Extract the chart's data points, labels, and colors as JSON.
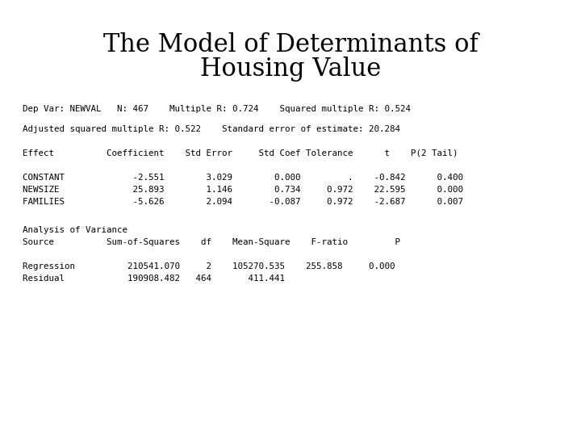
{
  "title_line1": "The Model of Determinants of",
  "title_line2": "Housing Value",
  "title_fontsize": 22,
  "title_fontfamily": "serif",
  "bg_color": "#ffffff",
  "text_color": "#000000",
  "mono_font": "monospace",
  "body_fontsize": 7.8,
  "line1": "Dep Var: NEWVAL   N: 467    Multiple R: 0.724    Squared multiple R: 0.524",
  "line2": "Adjusted squared multiple R: 0.522    Standard error of estimate: 20.284",
  "header": "Effect          Coefficient    Std Error     Std Coef Tolerance      t    P(2 Tail)",
  "row1": "CONSTANT             -2.551        3.029        0.000         .    -0.842      0.400",
  "row2": "NEWSIZE              25.893        1.146        0.734     0.972    22.595      0.000",
  "row3": "FAMILIES             -5.626        2.094       -0.087     0.972    -2.687      0.007",
  "anova_title": "Analysis of Variance",
  "anova_header": "Source          Sum-of-Squares    df    Mean-Square    F-ratio         P",
  "anova_row1": "Regression          210541.070     2    105270.535    255.858     0.000",
  "anova_row2": "Residual            190908.482   464       411.441"
}
